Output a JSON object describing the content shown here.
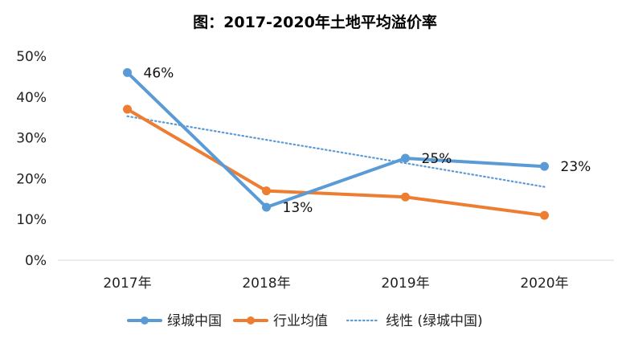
{
  "chart_data": {
    "type": "line",
    "title": "图：2017-2020年土地平均溢价率",
    "xlabel": "",
    "ylabel": "",
    "categories": [
      "2017年",
      "2018年",
      "2019年",
      "2020年"
    ],
    "ylim": [
      0,
      50
    ],
    "yticks": [
      0,
      10,
      20,
      30,
      40,
      50
    ],
    "ytick_labels": [
      "0%",
      "10%",
      "20%",
      "30%",
      "40%",
      "50%"
    ],
    "grid": false,
    "legend_position": "bottom",
    "series": [
      {
        "name": "绿城中国",
        "values": [
          46,
          13,
          25,
          23
        ],
        "data_labels": [
          "46%",
          "13%",
          "25%",
          "23%"
        ],
        "color": "#5B9BD5",
        "marker": "circle",
        "style": "solid"
      },
      {
        "name": "行业均值",
        "values": [
          37,
          17,
          15.5,
          11
        ],
        "data_labels": [
          "",
          "",
          "",
          ""
        ],
        "color": "#ED7D31",
        "marker": "circle",
        "style": "solid"
      },
      {
        "name": "线性 (绿城中国)",
        "values": [
          35.3,
          29.5,
          23.8,
          18.0
        ],
        "data_labels": [
          "",
          "",
          "",
          ""
        ],
        "color": "#5B9BD5",
        "marker": "none",
        "style": "dotted"
      }
    ]
  }
}
